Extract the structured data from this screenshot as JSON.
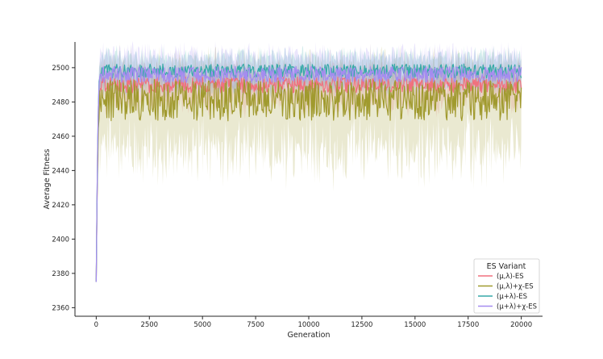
{
  "chart_data": {
    "type": "line",
    "title": "",
    "xlabel": "Generation",
    "ylabel": "Average Fitness",
    "xlim": [
      -1000,
      21000
    ],
    "ylim": [
      2355,
      2515
    ],
    "x_ticks": [
      0,
      2500,
      5000,
      7500,
      10000,
      12500,
      15000,
      17500,
      20000
    ],
    "y_ticks": [
      2360,
      2380,
      2400,
      2420,
      2440,
      2460,
      2480,
      2500
    ],
    "grid": false,
    "legend_placement": "bottom-right",
    "legend_title": "ES Variant",
    "x_range": [
      0,
      20000
    ],
    "series": [
      {
        "name": "(μ,λ)-ES",
        "color": "#f0717e",
        "start_value": 2375,
        "plateau_mean": 2490,
        "band_low": 2480,
        "band_high": 2497
      },
      {
        "name": "(μ,λ)+χ-ES",
        "color": "#a09a2e",
        "start_value": 2375,
        "plateau_mean": 2481,
        "band_low": 2452,
        "band_high": 2496
      },
      {
        "name": "(μ+λ)-ES",
        "color": "#36a9a8",
        "start_value": 2375,
        "plateau_mean": 2498,
        "band_low": 2490,
        "band_high": 2505
      },
      {
        "name": "(μ+λ)+χ-ES",
        "color": "#a58cf0",
        "start_value": 2375,
        "plateau_mean": 2496,
        "band_low": 2489,
        "band_high": 2506
      }
    ]
  }
}
